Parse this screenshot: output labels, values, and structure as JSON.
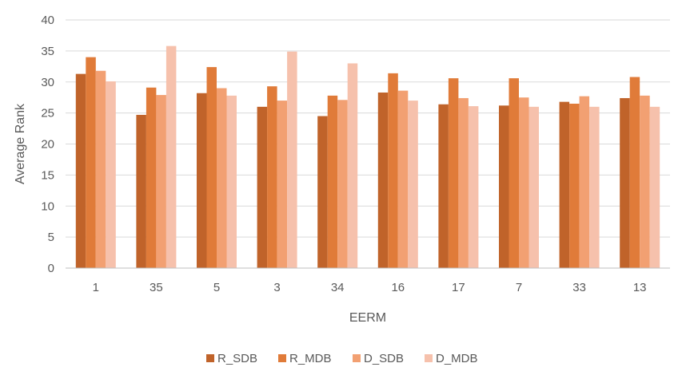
{
  "chart_data": {
    "type": "bar",
    "xlabel": "EERM",
    "ylabel": "Average Rank",
    "ylim": [
      0,
      40
    ],
    "yticks": [
      0,
      5,
      10,
      15,
      20,
      25,
      30,
      35,
      40
    ],
    "grid": true,
    "legend_position": "bottom",
    "categories": [
      "1",
      "35",
      "5",
      "3",
      "34",
      "16",
      "17",
      "7",
      "33",
      "13"
    ],
    "series": [
      {
        "name": "R_SDB",
        "color": "#c0632a",
        "values": [
          31.3,
          24.7,
          28.2,
          26.0,
          24.5,
          28.3,
          26.4,
          26.2,
          26.8,
          27.4
        ]
      },
      {
        "name": "R_MDB",
        "color": "#e07b39",
        "values": [
          34.0,
          29.1,
          32.4,
          29.3,
          27.8,
          31.4,
          30.6,
          30.6,
          26.5,
          30.8
        ]
      },
      {
        "name": "D_SDB",
        "color": "#f2a072",
        "values": [
          31.8,
          27.9,
          29.0,
          27.0,
          27.1,
          28.6,
          27.4,
          27.5,
          27.7,
          27.8
        ]
      },
      {
        "name": "D_MDB",
        "color": "#f6c1ac",
        "values": [
          30.1,
          35.8,
          27.8,
          34.9,
          33.0,
          27.0,
          26.1,
          26.0,
          26.0,
          26.0
        ]
      }
    ]
  }
}
